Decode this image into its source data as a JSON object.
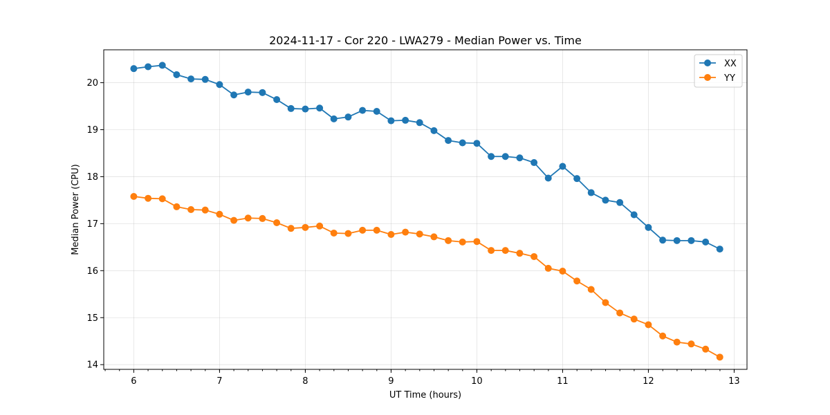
{
  "chart_data": {
    "type": "line",
    "title": "2024-11-17 - Cor 220 - LWA279 - Median Power vs. Time",
    "xlabel": "UT Time (hours)",
    "ylabel": "Median Power (CPU)",
    "xlim": [
      5.65,
      13.15
    ],
    "ylim": [
      13.9,
      20.7
    ],
    "xticks": [
      6,
      7,
      8,
      9,
      10,
      11,
      12,
      13
    ],
    "yticks": [
      14,
      15,
      16,
      17,
      18,
      19,
      20
    ],
    "minor_xtick_step": 0.1667,
    "grid": true,
    "legend_position": "top-right",
    "x": [
      6.0,
      6.167,
      6.333,
      6.5,
      6.667,
      6.833,
      7.0,
      7.167,
      7.333,
      7.5,
      7.667,
      7.833,
      8.0,
      8.167,
      8.333,
      8.5,
      8.667,
      8.833,
      9.0,
      9.167,
      9.333,
      9.5,
      9.667,
      9.833,
      10.0,
      10.167,
      10.333,
      10.5,
      10.667,
      10.833,
      11.0,
      11.167,
      11.333,
      11.5,
      11.667,
      11.833,
      12.0,
      12.167,
      12.333,
      12.5,
      12.667,
      12.833
    ],
    "series": [
      {
        "name": "XX",
        "color": "#1f77b4",
        "values": [
          20.3,
          20.34,
          20.37,
          20.17,
          20.08,
          20.07,
          19.96,
          19.74,
          19.8,
          19.79,
          19.64,
          19.45,
          19.44,
          19.46,
          19.23,
          19.27,
          19.41,
          19.39,
          19.19,
          19.2,
          19.15,
          18.98,
          18.77,
          18.72,
          18.71,
          18.43,
          18.43,
          18.4,
          18.3,
          17.97,
          18.22,
          17.96,
          17.66,
          17.5,
          17.45,
          17.19,
          16.92,
          16.65,
          16.64,
          16.64,
          16.61,
          16.46
        ]
      },
      {
        "name": "YY",
        "color": "#ff7f0e",
        "values": [
          17.58,
          17.54,
          17.53,
          17.36,
          17.3,
          17.29,
          17.2,
          17.07,
          17.12,
          17.11,
          17.02,
          16.9,
          16.92,
          16.95,
          16.8,
          16.79,
          16.86,
          16.86,
          16.77,
          16.82,
          16.78,
          16.72,
          16.64,
          16.61,
          16.62,
          16.43,
          16.43,
          16.37,
          16.3,
          16.05,
          15.99,
          15.78,
          15.6,
          15.32,
          15.1,
          14.97,
          14.85,
          14.61,
          14.48,
          14.44,
          14.33,
          14.16
        ]
      }
    ]
  }
}
